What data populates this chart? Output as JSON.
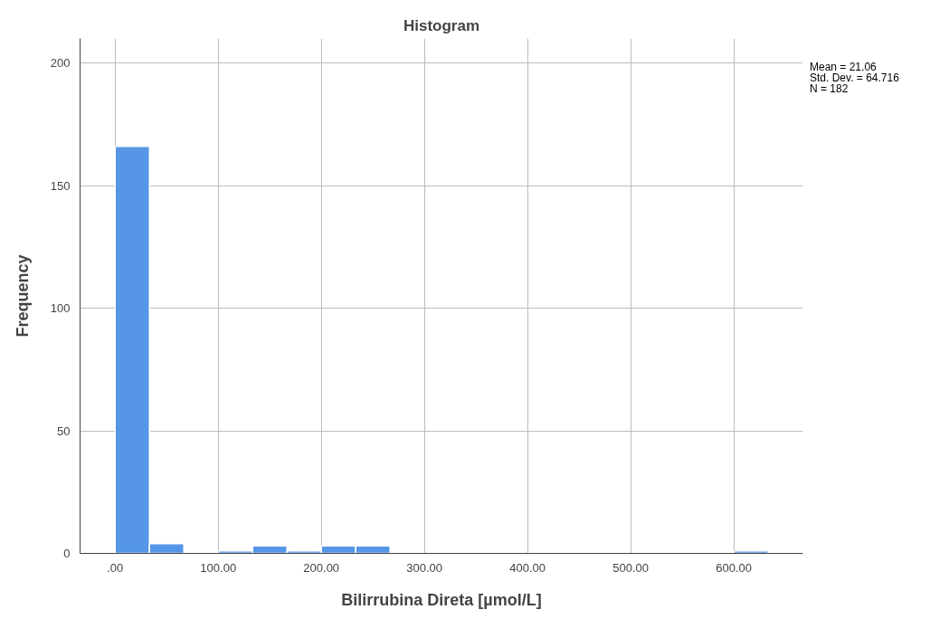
{
  "chart_data": {
    "type": "histogram",
    "title": "Histogram",
    "xlabel": "Bilirrubina Direta [µmol/L]",
    "ylabel": "Frequency",
    "bins": [
      0,
      33.33,
      66.67,
      100,
      133.33,
      166.67,
      200,
      233.33,
      266.67,
      300,
      333.33,
      366.67,
      400,
      433.33,
      466.67,
      500,
      533.33,
      566.67,
      600,
      633.33
    ],
    "values": [
      166,
      4,
      0,
      1,
      3,
      1,
      3,
      3,
      0,
      0,
      0,
      0,
      0,
      0,
      0,
      0,
      0,
      0,
      1
    ],
    "color": "#5596e6",
    "xlim": [
      -34,
      667
    ],
    "ylim": [
      0,
      210
    ],
    "xticks": [
      {
        "value": 0,
        "label": ".00"
      },
      {
        "value": 100,
        "label": "100.00"
      },
      {
        "value": 200,
        "label": "200.00"
      },
      {
        "value": 300,
        "label": "300.00"
      },
      {
        "value": 400,
        "label": "400.00"
      },
      {
        "value": 500,
        "label": "500.00"
      },
      {
        "value": 600,
        "label": "600.00"
      }
    ],
    "yticks": [
      0,
      50,
      100,
      150,
      200
    ],
    "grid": true,
    "annotations": [
      "Mean = 21.06",
      "Std. Dev. = 64.716",
      "N = 182"
    ]
  }
}
